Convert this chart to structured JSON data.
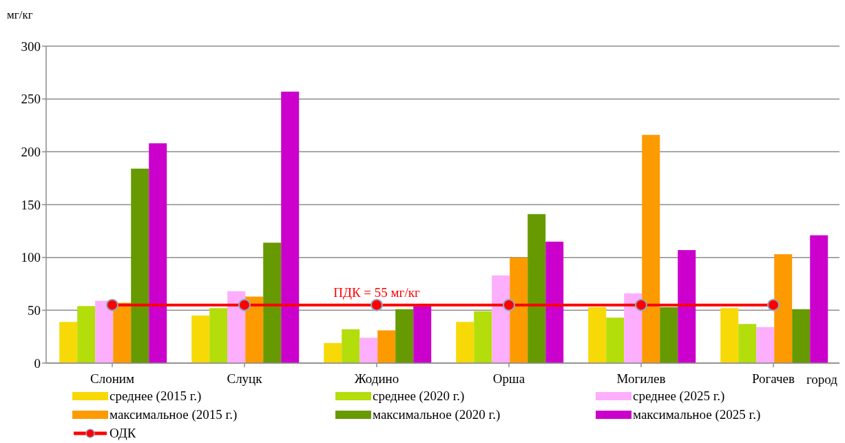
{
  "chart_data": {
    "type": "bar",
    "ylabel": "мг/кг",
    "xlabel": "город",
    "categories": [
      "Слоним",
      "Слуцк",
      "Жодино",
      "Орша",
      "Могилев",
      "Рогачев"
    ],
    "series": [
      {
        "name": "среднее (2015 г.)",
        "color": "#f7d907",
        "values": [
          39,
          45,
          19,
          39,
          53,
          52
        ]
      },
      {
        "name": "среднее (2020 г.)",
        "color": "#b4dd0c",
        "values": [
          54,
          52,
          32,
          49,
          43,
          37
        ]
      },
      {
        "name": "среднее (2025 г.)",
        "color": "#fdaefc",
        "values": [
          59,
          68,
          24,
          83,
          66,
          34
        ]
      },
      {
        "name": "максимальное (2015 г.)",
        "color": "#fd9a00",
        "values": [
          57,
          63,
          31,
          100,
          216,
          103
        ]
      },
      {
        "name": "максимальное (2020 г.)",
        "color": "#679a00",
        "values": [
          184,
          114,
          51,
          141,
          53,
          51
        ]
      },
      {
        "name": "максимальное (2025 г.)",
        "color": "#cc00cc",
        "values": [
          208,
          257,
          54,
          115,
          107,
          121
        ]
      },
      {
        "name": "ОДК",
        "type": "line",
        "color": "#ff0000",
        "marker": "circle",
        "values": [
          55,
          55,
          55,
          55,
          55,
          55
        ]
      }
    ],
    "annotations": [
      {
        "text": "ПДК = 55 мг/кг",
        "x": "Жодино",
        "y": 55
      }
    ],
    "ylim": [
      0,
      300
    ],
    "yticks": [
      0,
      50,
      100,
      150,
      200,
      250,
      300
    ],
    "grid": "y",
    "legend": "bottom"
  }
}
